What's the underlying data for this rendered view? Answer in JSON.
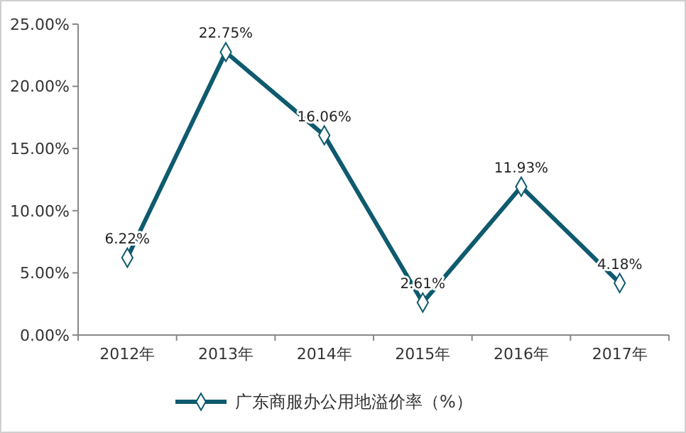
{
  "chart_data": {
    "type": "line",
    "categories": [
      "2012年",
      "2013年",
      "2014年",
      "2015年",
      "2016年",
      "2017年"
    ],
    "series": [
      {
        "name": "广东商服办公用地溢价率（%）",
        "color": "#0e5a6e",
        "values": [
          6.22,
          22.75,
          16.06,
          2.61,
          11.93,
          4.18
        ],
        "value_labels": [
          "6.22%",
          "22.75%",
          "16.06%",
          "2.61%",
          "11.93%",
          "4.18%"
        ]
      }
    ],
    "ylim": [
      0,
      25
    ],
    "yticks": [
      {
        "value": 0,
        "label": "0.00%"
      },
      {
        "value": 5,
        "label": "5.00%"
      },
      {
        "value": 10,
        "label": "10.00%"
      },
      {
        "value": 15,
        "label": "15.00%"
      },
      {
        "value": 20,
        "label": "20.00%"
      },
      {
        "value": 25,
        "label": "25.00%"
      }
    ],
    "grid": false,
    "legend": "bottom",
    "marker": "diamond",
    "line_style": "solid"
  }
}
